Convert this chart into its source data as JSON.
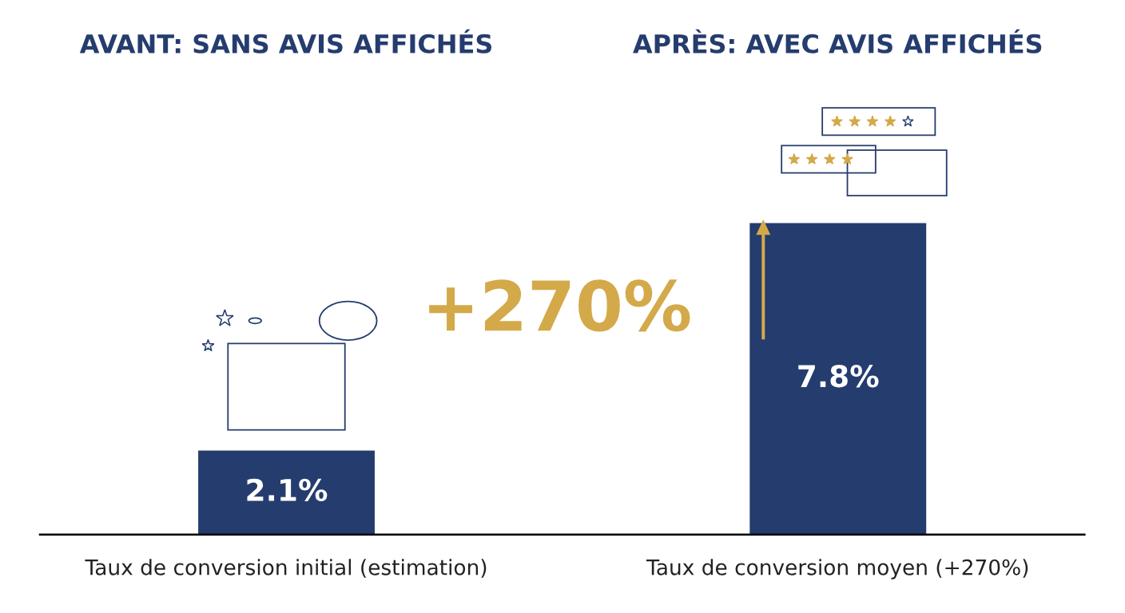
{
  "chart_data": {
    "type": "bar",
    "categories": [
      "Taux de conversion initial (estimation)",
      "Taux de conversion moyen (+270%)"
    ],
    "values": [
      2.1,
      7.8
    ],
    "colors": [
      "#253c6e",
      "#253c6e"
    ],
    "value_labels": [
      "2.1%",
      "7.8%"
    ],
    "annotations": [
      "AVANT: SANS AVIS AFFICHÉS",
      "APRÈS: AVEC AVIS AFFICHÉS",
      "+270%"
    ],
    "grid": false
  }
}
